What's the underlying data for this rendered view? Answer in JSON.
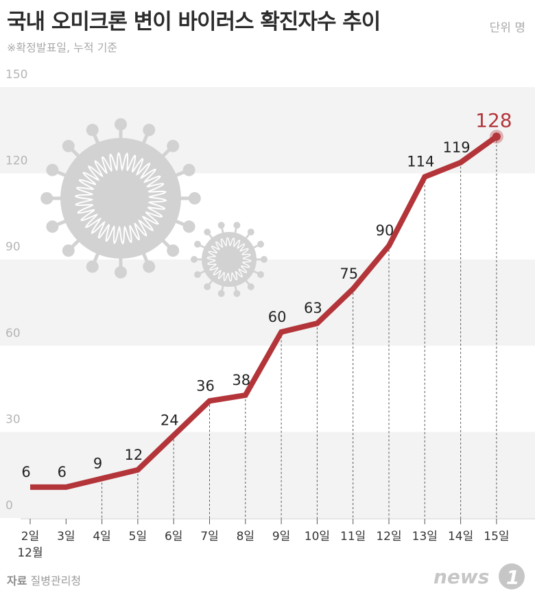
{
  "header": {
    "title": "국내 오미크론 변이 바이러스 확진자수 추이",
    "subtitle": "※확정발표일, 누적 기준",
    "unit": "단위 명"
  },
  "footer": {
    "source_label": "자료",
    "source_value": "질병관리청",
    "logo_text": "news"
  },
  "colors": {
    "line": "#b3353a",
    "band": "#f3f3f3",
    "virus": "#d2d2d2"
  },
  "chart_data": {
    "type": "line",
    "title": "국내 오미크론 변이 바이러스 확진자수 추이",
    "ylabel": "단위 명",
    "ylim": [
      0,
      150
    ],
    "yticks": [
      "0",
      "30",
      "60",
      "90",
      "120",
      "150"
    ],
    "categories": [
      "2일",
      "3일",
      "4일",
      "5일",
      "6일",
      "7일",
      "8일",
      "9일",
      "10일",
      "11일",
      "12일",
      "13일",
      "14일",
      "15일"
    ],
    "month_label": "12월",
    "values": [
      6,
      6,
      9,
      12,
      24,
      36,
      38,
      60,
      63,
      75,
      90,
      114,
      119,
      128
    ],
    "grid": "alternating horizontal bands",
    "legend": "none"
  }
}
